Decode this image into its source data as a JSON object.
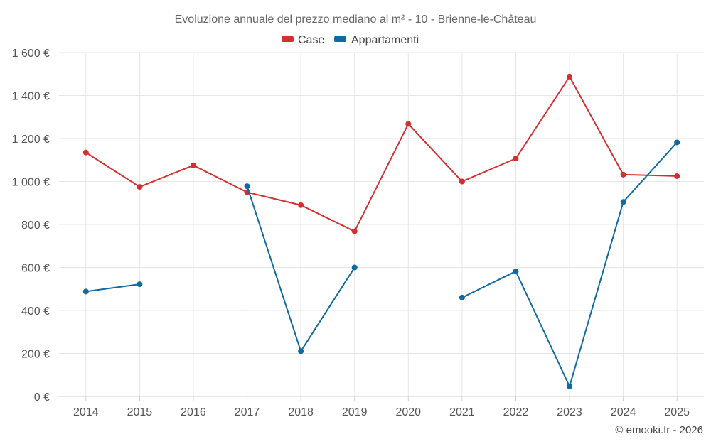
{
  "chart_data": {
    "type": "line",
    "title": "Evoluzione annuale del prezzo mediano al m² - 10 - Brienne-le-Château",
    "categories": [
      "2014",
      "2015",
      "2016",
      "2017",
      "2018",
      "2019",
      "2020",
      "2021",
      "2022",
      "2023",
      "2024",
      "2025"
    ],
    "series": [
      {
        "name": "Case",
        "color": "#d32f2f",
        "values": [
          1135,
          975,
          1075,
          950,
          890,
          768,
          1268,
          1000,
          1107,
          1488,
          1032,
          1025
        ]
      },
      {
        "name": "Appartamenti",
        "color": "#0f6aa0",
        "values": [
          488,
          522,
          null,
          978,
          210,
          600,
          null,
          460,
          582,
          47,
          905,
          1182
        ]
      }
    ],
    "ylim": [
      0,
      1600
    ],
    "yticks": [
      0,
      200,
      400,
      600,
      800,
      1000,
      1200,
      1400,
      1600
    ],
    "ytick_labels": [
      "0 €",
      "200 €",
      "400 €",
      "600 €",
      "800 €",
      "1 000 €",
      "1 200 €",
      "1 400 €",
      "1 600 €"
    ],
    "xlabel": "",
    "ylabel": "",
    "grid": true,
    "legend_position": "top-center"
  },
  "credit": "© emooki.fr - 2026"
}
